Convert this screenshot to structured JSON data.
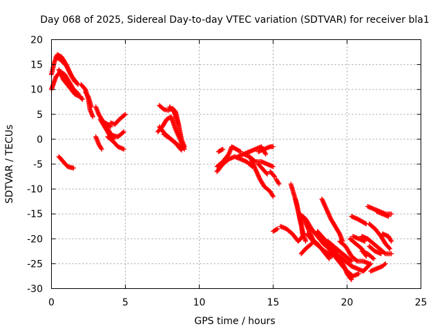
{
  "chart_data": {
    "type": "scatter",
    "title": "Day 068 of 2025, Sidereal Day-to-day VTEC variation (SDTVAR) for receiver bla1",
    "xlabel": "GPS time / hours",
    "ylabel": "SDTVAR / TECUs",
    "xlim": [
      0,
      25
    ],
    "ylim": [
      -30,
      20
    ],
    "xticks": [
      0,
      5,
      10,
      15,
      20,
      25
    ],
    "yticks": [
      20,
      15,
      10,
      5,
      0,
      -5,
      -10,
      -15,
      -20,
      -25,
      -30
    ],
    "grid": true,
    "marker": "+",
    "colors": {
      "series": "#ff0000",
      "axis": "#000000",
      "grid": "#a0a0a0"
    },
    "series": [
      {
        "name": "SDTVAR",
        "tracks": [
          [
            [
              0.0,
              10.0
            ],
            [
              0.3,
              12.5
            ],
            [
              0.6,
              13.6
            ],
            [
              0.9,
              13.0
            ],
            [
              1.2,
              11.5
            ],
            [
              1.5,
              10.0
            ],
            [
              1.8,
              9.2
            ]
          ],
          [
            [
              0.0,
              13.0
            ],
            [
              0.2,
              15.5
            ],
            [
              0.4,
              17.0
            ],
            [
              0.7,
              16.5
            ],
            [
              1.0,
              15.0
            ],
            [
              1.3,
              13.0
            ],
            [
              1.6,
              11.5
            ]
          ],
          [
            [
              0.3,
              16.5
            ],
            [
              0.6,
              16.0
            ],
            [
              1.0,
              14.8
            ],
            [
              1.4,
              12.5
            ],
            [
              1.8,
              11.0
            ]
          ],
          [
            [
              0.5,
              14.0
            ],
            [
              0.8,
              12.0
            ],
            [
              1.2,
              10.5
            ],
            [
              1.6,
              9.0
            ],
            [
              2.0,
              8.5
            ]
          ],
          [
            [
              0.9,
              12.2
            ],
            [
              1.3,
              10.6
            ],
            [
              1.7,
              9.2
            ],
            [
              2.1,
              8.0
            ]
          ],
          [
            [
              2.0,
              11.0
            ],
            [
              2.3,
              10.0
            ],
            [
              2.5,
              8.0
            ],
            [
              2.6,
              6.0
            ],
            [
              2.8,
              4.5
            ]
          ],
          [
            [
              2.3,
              9.5
            ],
            [
              2.5,
              8.5
            ],
            [
              2.7,
              6.5
            ]
          ],
          [
            [
              3.0,
              6.5
            ],
            [
              3.2,
              5.0
            ],
            [
              3.5,
              3.5
            ],
            [
              3.8,
              2.0
            ],
            [
              4.1,
              0.8
            ],
            [
              4.5,
              0.5
            ],
            [
              4.9,
              1.5
            ]
          ],
          [
            [
              3.3,
              4.0
            ],
            [
              3.6,
              2.5
            ],
            [
              3.9,
              1.0
            ],
            [
              4.2,
              0.0
            ]
          ],
          [
            [
              3.5,
              3.5
            ],
            [
              3.8,
              3.0
            ],
            [
              4.0,
              2.5
            ]
          ],
          [
            [
              4.0,
              3.3
            ],
            [
              4.3,
              3.0
            ],
            [
              4.6,
              4.0
            ],
            [
              5.0,
              5.0
            ]
          ],
          [
            [
              3.0,
              0.5
            ],
            [
              3.2,
              -1.0
            ],
            [
              3.4,
              -2.0
            ]
          ],
          [
            [
              3.8,
              0.5
            ],
            [
              4.2,
              -0.5
            ],
            [
              4.5,
              -1.5
            ],
            [
              4.9,
              -2.0
            ]
          ],
          [
            [
              0.5,
              -3.5
            ],
            [
              0.8,
              -4.5
            ],
            [
              1.1,
              -5.5
            ],
            [
              1.5,
              -5.8
            ]
          ],
          [
            [
              7.3,
              6.8
            ],
            [
              7.6,
              6.0
            ],
            [
              7.9,
              5.8
            ],
            [
              8.2,
              6.2
            ],
            [
              8.4,
              5.5
            ],
            [
              8.6,
              3.0
            ],
            [
              8.8,
              0.0
            ],
            [
              9.0,
              -1.5
            ]
          ],
          [
            [
              7.2,
              1.5
            ],
            [
              7.5,
              2.5
            ],
            [
              7.8,
              4.0
            ],
            [
              8.1,
              4.5
            ],
            [
              8.4,
              2.0
            ],
            [
              8.7,
              0.0
            ],
            [
              9.0,
              -2.0
            ]
          ],
          [
            [
              7.3,
              2.5
            ],
            [
              7.7,
              1.0
            ],
            [
              8.1,
              0.0
            ],
            [
              8.5,
              -1.0
            ],
            [
              8.9,
              -1.8
            ]
          ],
          [
            [
              7.6,
              1.0
            ],
            [
              8.0,
              0.2
            ],
            [
              8.4,
              -0.8
            ],
            [
              8.8,
              -2.2
            ]
          ],
          [
            [
              8.0,
              6.5
            ],
            [
              8.3,
              5.5
            ],
            [
              8.6,
              3.0
            ]
          ],
          [
            [
              11.2,
              -6.5
            ],
            [
              11.6,
              -5.0
            ],
            [
              12.0,
              -4.0
            ],
            [
              12.4,
              -3.5
            ],
            [
              12.8,
              -4.0
            ],
            [
              13.2,
              -4.5
            ],
            [
              13.6,
              -5.5
            ]
          ],
          [
            [
              11.2,
              -5.5
            ],
            [
              11.6,
              -4.5
            ],
            [
              12.0,
              -3.0
            ],
            [
              12.2,
              -1.5
            ],
            [
              12.5,
              -2.0
            ],
            [
              12.8,
              -2.5
            ]
          ],
          [
            [
              11.3,
              -2.5
            ],
            [
              11.6,
              -2.0
            ]
          ],
          [
            [
              12.6,
              -3.5
            ],
            [
              13.0,
              -3.0
            ],
            [
              13.4,
              -3.5
            ],
            [
              13.8,
              -4.5
            ],
            [
              14.2,
              -4.5
            ],
            [
              14.6,
              -5.0
            ],
            [
              15.0,
              -5.5
            ]
          ],
          [
            [
              13.0,
              -3.0
            ],
            [
              13.4,
              -2.5
            ],
            [
              13.8,
              -2.0
            ],
            [
              14.2,
              -1.5
            ],
            [
              14.5,
              -3.0
            ]
          ],
          [
            [
              14.0,
              -2.5
            ],
            [
              14.4,
              -2.0
            ],
            [
              14.8,
              -1.5
            ],
            [
              15.0,
              -1.5
            ]
          ],
          [
            [
              13.5,
              -4.0
            ],
            [
              13.8,
              -6.0
            ],
            [
              14.1,
              -8.0
            ],
            [
              14.4,
              -9.5
            ],
            [
              14.8,
              -10.5
            ],
            [
              15.0,
              -11.5
            ]
          ],
          [
            [
              14.0,
              -5.0
            ],
            [
              14.3,
              -6.0
            ],
            [
              14.6,
              -7.0
            ]
          ],
          [
            [
              14.8,
              -6.5
            ],
            [
              15.1,
              -7.5
            ]
          ],
          [
            [
              15.2,
              -8.0
            ],
            [
              15.4,
              -9.0
            ]
          ],
          [
            [
              16.2,
              -9.0
            ],
            [
              16.4,
              -11.0
            ],
            [
              16.6,
              -13.0
            ],
            [
              16.8,
              -16.0
            ],
            [
              17.0,
              -18.5
            ],
            [
              17.2,
              -20.5
            ]
          ],
          [
            [
              16.5,
              -12.0
            ],
            [
              16.7,
              -14.5
            ],
            [
              16.9,
              -17.0
            ],
            [
              17.0,
              -19.5
            ]
          ],
          [
            [
              15.5,
              -17.5
            ],
            [
              15.9,
              -18.0
            ],
            [
              16.3,
              -19.0
            ],
            [
              16.7,
              -20.5
            ],
            [
              17.0,
              -19.5
            ]
          ],
          [
            [
              15.0,
              -18.5
            ],
            [
              15.3,
              -18.0
            ]
          ],
          [
            [
              16.8,
              -15.0
            ],
            [
              17.2,
              -16.0
            ],
            [
              17.6,
              -18.0
            ],
            [
              18.0,
              -19.5
            ],
            [
              18.4,
              -21.0
            ],
            [
              18.8,
              -22.0
            ]
          ],
          [
            [
              17.0,
              -15.5
            ],
            [
              17.3,
              -17.5
            ],
            [
              17.6,
              -19.5
            ],
            [
              17.8,
              -20.8
            ]
          ],
          [
            [
              17.3,
              -19.0
            ],
            [
              17.7,
              -20.5
            ],
            [
              18.1,
              -21.5
            ],
            [
              18.5,
              -22.5
            ],
            [
              19.0,
              -23.5
            ]
          ],
          [
            [
              16.9,
              -23.0
            ],
            [
              17.2,
              -22.0
            ],
            [
              17.6,
              -21.0
            ]
          ],
          [
            [
              18.3,
              -12.0
            ],
            [
              18.6,
              -14.0
            ],
            [
              18.9,
              -16.0
            ],
            [
              19.2,
              -17.5
            ],
            [
              19.5,
              -19.0
            ],
            [
              19.7,
              -20.5
            ]
          ],
          [
            [
              18.0,
              -18.5
            ],
            [
              18.3,
              -19.5
            ],
            [
              18.6,
              -20.5
            ],
            [
              18.9,
              -21.5
            ],
            [
              19.2,
              -22.5
            ],
            [
              19.5,
              -24.0
            ],
            [
              19.8,
              -25.5
            ],
            [
              20.0,
              -27.0
            ],
            [
              20.3,
              -28.2
            ]
          ],
          [
            [
              18.5,
              -21.0
            ],
            [
              18.9,
              -22.5
            ],
            [
              19.3,
              -24.0
            ],
            [
              19.7,
              -25.5
            ],
            [
              20.0,
              -26.5
            ],
            [
              20.4,
              -27.5
            ],
            [
              20.8,
              -27.0
            ]
          ],
          [
            [
              17.6,
              -20.0
            ],
            [
              18.0,
              -21.0
            ],
            [
              18.4,
              -22.5
            ],
            [
              18.8,
              -24.0
            ]
          ],
          [
            [
              18.7,
              -20.5
            ],
            [
              19.1,
              -21.5
            ],
            [
              19.5,
              -22.5
            ],
            [
              19.9,
              -23.5
            ],
            [
              20.3,
              -24.5
            ]
          ],
          [
            [
              19.5,
              -20.5
            ],
            [
              19.9,
              -21.5
            ],
            [
              20.3,
              -23.5
            ],
            [
              20.7,
              -24.5
            ],
            [
              21.1,
              -24.5
            ],
            [
              21.5,
              -25.0
            ]
          ],
          [
            [
              19.5,
              -23.5
            ],
            [
              19.9,
              -24.5
            ],
            [
              20.3,
              -25.5
            ],
            [
              20.7,
              -26.0
            ],
            [
              21.1,
              -26.5
            ],
            [
              21.6,
              -25.0
            ]
          ],
          [
            [
              20.2,
              -20.0
            ],
            [
              20.6,
              -21.0
            ],
            [
              21.0,
              -22.0
            ],
            [
              21.3,
              -23.5
            ]
          ],
          [
            [
              20.4,
              -19.5
            ],
            [
              20.8,
              -20.0
            ],
            [
              21.2,
              -20.5
            ]
          ],
          [
            [
              21.0,
              -22.5
            ],
            [
              21.4,
              -23.0
            ],
            [
              21.8,
              -24.0
            ]
          ],
          [
            [
              20.3,
              -15.5
            ],
            [
              20.7,
              -16.0
            ],
            [
              21.0,
              -16.5
            ],
            [
              21.3,
              -17.0
            ]
          ],
          [
            [
              21.0,
              -19.5
            ],
            [
              21.4,
              -20.0
            ],
            [
              21.8,
              -21.0
            ],
            [
              22.2,
              -22.0
            ],
            [
              22.6,
              -23.0
            ],
            [
              23.0,
              -23.0
            ]
          ],
          [
            [
              21.5,
              -17.0
            ],
            [
              21.9,
              -18.0
            ],
            [
              22.3,
              -19.5
            ],
            [
              22.6,
              -21.0
            ],
            [
              22.9,
              -22.0
            ]
          ],
          [
            [
              22.4,
              -19.0
            ],
            [
              22.8,
              -19.5
            ],
            [
              23.0,
              -20.5
            ]
          ],
          [
            [
              21.5,
              -21.5
            ],
            [
              21.9,
              -22.5
            ],
            [
              22.3,
              -23.0
            ]
          ],
          [
            [
              21.6,
              -26.5
            ],
            [
              22.0,
              -26.0
            ],
            [
              22.4,
              -25.5
            ],
            [
              22.6,
              -25.0
            ]
          ],
          [
            [
              21.4,
              -13.5
            ],
            [
              21.8,
              -14.0
            ],
            [
              22.2,
              -14.5
            ],
            [
              22.6,
              -15.0
            ],
            [
              23.0,
              -15.0
            ]
          ],
          [
            [
              22.0,
              -14.5
            ],
            [
              22.4,
              -15.0
            ],
            [
              22.8,
              -15.5
            ]
          ]
        ]
      }
    ]
  }
}
